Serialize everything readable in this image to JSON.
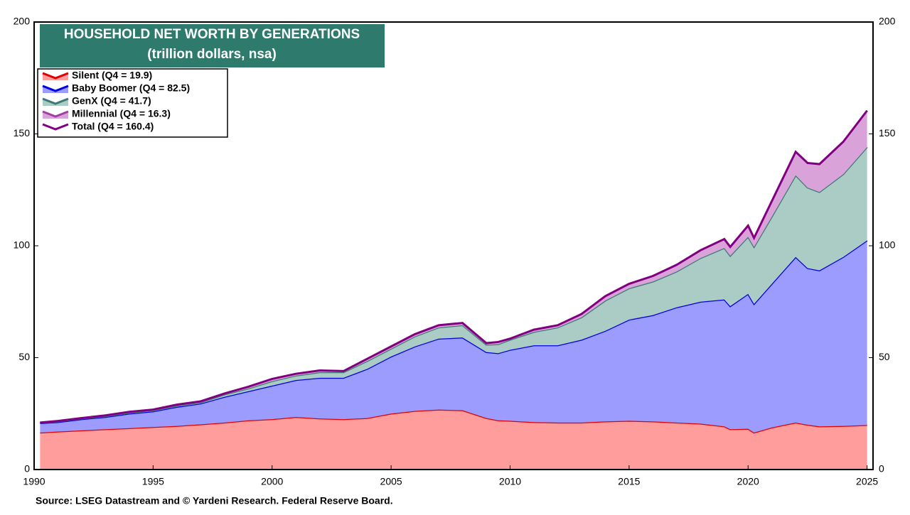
{
  "chart_data": {
    "type": "area",
    "stacked": true,
    "title": "HOUSEHOLD NET WORTH BY GENERATIONS",
    "subtitle": "(trillion dollars, nsa)",
    "source": "Source: LSEG Datastream and © Yardeni Research. Federal Reserve Board.",
    "x": [
      1990.25,
      1991,
      1992,
      1993,
      1994,
      1995,
      1996,
      1997,
      1998,
      1999,
      2000,
      2001,
      2002,
      2003,
      2004,
      2005,
      2006,
      2007,
      2008,
      2009,
      2009.5,
      2010,
      2011,
      2012,
      2013,
      2014,
      2015,
      2016,
      2017,
      2018,
      2019,
      2019.25,
      2020,
      2020.25,
      2021,
      2022,
      2022.5,
      2023,
      2024,
      2025
    ],
    "xlim": [
      1990,
      2025.25
    ],
    "xticks": [
      1990,
      1995,
      2000,
      2005,
      2010,
      2015,
      2020,
      2025
    ],
    "ylim": [
      0,
      200
    ],
    "yticks": [
      0,
      50,
      100,
      150,
      200
    ],
    "y2lim": [
      0,
      200
    ],
    "y2ticks": [
      0,
      50,
      100,
      150,
      200
    ],
    "legend": "upper left",
    "series": [
      {
        "name": "Silent (Q4 = 19.9)",
        "color": "#e00000",
        "fill": "#ff9c9c",
        "values": [
          16.5,
          17,
          17.5,
          18,
          18.5,
          19,
          19.5,
          20.2,
          21,
          22,
          22.5,
          23.5,
          22.8,
          22.5,
          23,
          25,
          26.2,
          26.8,
          26.5,
          23,
          22,
          21.8,
          21.2,
          21,
          21,
          21.5,
          21.8,
          21.5,
          21,
          20.5,
          19.3,
          18,
          18.2,
          16.5,
          18.8,
          21,
          20,
          19.3,
          19.5,
          19.9
        ]
      },
      {
        "name": "Baby Boomer (Q4 = 82.5)",
        "color": "#0000e0",
        "fill": "#9c9cff",
        "values": [
          4.2,
          4.2,
          5,
          5.5,
          6.5,
          7,
          8.5,
          9.3,
          11.5,
          13,
          15,
          16.5,
          18.2,
          18.5,
          22,
          25.5,
          28.8,
          31.7,
          32.5,
          29.5,
          30,
          31.7,
          34.3,
          34.5,
          37,
          40.5,
          45.2,
          47.5,
          51.5,
          54.5,
          56.7,
          55,
          60.3,
          57.5,
          64.2,
          74,
          70,
          69.7,
          75.5,
          82.5
        ]
      },
      {
        "name": "GenX (Q4 = 41.7)",
        "color": "#3d7a74",
        "fill": "#abcbc5",
        "values": [
          0.2,
          0.3,
          0.3,
          0.4,
          0.4,
          0.5,
          0.5,
          0.5,
          1,
          1.2,
          2,
          2,
          2.5,
          2.5,
          3.5,
          3.5,
          4.5,
          5,
          5.5,
          3.3,
          4,
          4.5,
          6,
          8,
          10,
          13.5,
          14,
          15,
          16,
          19.5,
          23,
          22.5,
          25.5,
          25.5,
          30,
          36.5,
          36,
          35,
          37,
          41.7
        ]
      },
      {
        "name": "Millennial (Q4 = 16.3)",
        "color": "#a040a0",
        "fill": "#d9a3d9",
        "values": [
          0.1,
          0.2,
          0.2,
          0.3,
          0.4,
          0.3,
          0.5,
          0.5,
          0.5,
          0.8,
          1,
          0.8,
          0.8,
          0.5,
          1,
          1,
          1,
          1,
          1,
          0.7,
          1,
          0.5,
          1,
          1,
          1.5,
          2,
          2,
          2.5,
          3,
          3.5,
          4,
          4,
          5,
          4,
          7,
          10.5,
          11,
          12.5,
          14.5,
          16.3
        ]
      },
      {
        "name": "Total (Q4 = 160.4)",
        "color": "#800080",
        "type": "line",
        "values": [
          21,
          21.7,
          23,
          24.2,
          25.8,
          26.8,
          29,
          30.5,
          34,
          37,
          40.5,
          42.8,
          44.3,
          44,
          49.5,
          55,
          60.5,
          64.5,
          65.5,
          56.5,
          57,
          58.5,
          62.5,
          64.5,
          69.5,
          77.5,
          83,
          86.5,
          91.5,
          98,
          103,
          99.5,
          109,
          103.5,
          120,
          142,
          137,
          136.5,
          146.5,
          160.4
        ]
      }
    ]
  }
}
